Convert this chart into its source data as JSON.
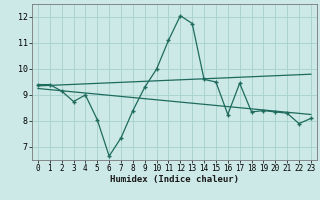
{
  "title": "",
  "xlabel": "Humidex (Indice chaleur)",
  "xlim": [
    -0.5,
    23.5
  ],
  "ylim": [
    6.5,
    12.5
  ],
  "yticks": [
    7,
    8,
    9,
    10,
    11,
    12
  ],
  "xticks": [
    0,
    1,
    2,
    3,
    4,
    5,
    6,
    7,
    8,
    9,
    10,
    11,
    12,
    13,
    14,
    15,
    16,
    17,
    18,
    19,
    20,
    21,
    22,
    23
  ],
  "bg_color": "#cce9e7",
  "grid_color": "#aad4d0",
  "line_color": "#1e6b5e",
  "main_x": [
    0,
    1,
    2,
    3,
    4,
    5,
    6,
    7,
    8,
    9,
    10,
    11,
    12,
    13,
    14,
    15,
    16,
    17,
    18,
    19,
    20,
    21,
    22,
    23
  ],
  "main_y": [
    9.4,
    9.4,
    9.15,
    8.75,
    9.0,
    8.05,
    6.65,
    7.35,
    8.4,
    9.3,
    10.0,
    11.1,
    12.05,
    11.75,
    9.6,
    9.5,
    8.25,
    9.45,
    8.35,
    8.4,
    8.35,
    8.3,
    7.9,
    8.1
  ],
  "trend1_x": [
    0,
    23
  ],
  "trend1_y": [
    9.35,
    9.8
  ],
  "trend2_x": [
    0,
    23
  ],
  "trend2_y": [
    9.25,
    8.25
  ]
}
